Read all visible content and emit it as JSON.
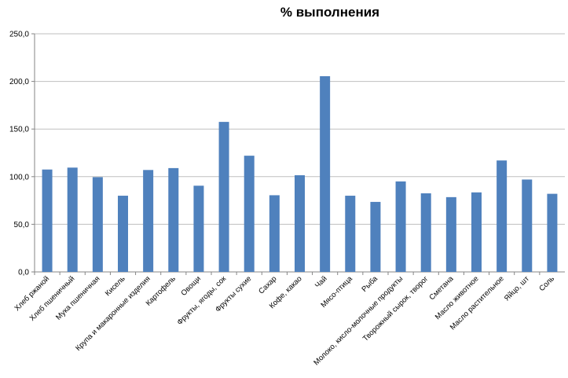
{
  "chart_data": {
    "type": "bar",
    "title": "% выполнения",
    "xlabel": "",
    "ylabel": "",
    "ylim": [
      0,
      250
    ],
    "yticks": [
      "0,0",
      "50,0",
      "100,0",
      "150,0",
      "200,0",
      "250,0"
    ],
    "grid": true,
    "legend": "none",
    "bar_color": "#4F81BD",
    "grid_color": "#BFBFBF",
    "categories": [
      "Хлеб ржаной",
      "Хлеб пшеничный",
      "Мука пшеничная",
      "Кисель",
      "Крупа и макаронные изделия",
      "Картофель",
      "Овощи",
      "Фрукты, ягоды, сок",
      "Фрукты сухие",
      "Сахар",
      "Кофе, какао",
      "Чай",
      "Мясо-птица",
      "Рыба",
      "Молоко, кисло-молочные продукты",
      "Творожный сырок, творог",
      "Сметана",
      "Масло животное",
      "Масло растительное",
      "Яйцо, шт",
      "Соль"
    ],
    "values": [
      107.5,
      109.5,
      99.5,
      80,
      107,
      109,
      90.5,
      157.5,
      122,
      80.5,
      101.5,
      205.5,
      80,
      73.5,
      95,
      82.5,
      78.5,
      83.5,
      117,
      97,
      82
    ]
  }
}
